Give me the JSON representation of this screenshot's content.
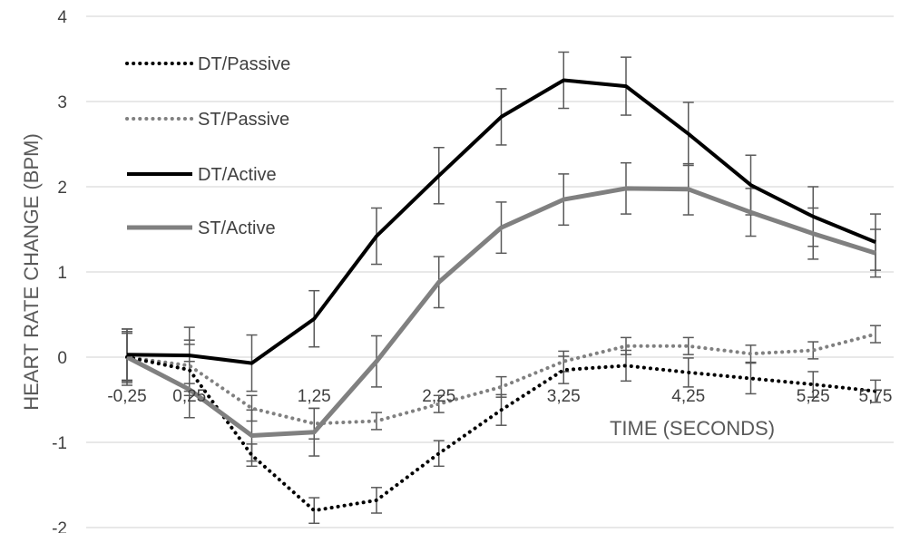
{
  "chart_data": {
    "type": "line",
    "title": "",
    "xlabel": "TIME (SECONDS)",
    "ylabel": "HEART RATE CHANGE (BPM)",
    "ylim": [
      -2,
      4
    ],
    "yticks": [
      "-2",
      "-1",
      "0",
      "1",
      "2",
      "3",
      "4"
    ],
    "x": [
      -0.25,
      0.25,
      0.75,
      1.25,
      1.75,
      2.25,
      2.75,
      3.25,
      3.75,
      4.25,
      4.75,
      5.25,
      5.75
    ],
    "xtick_labels": [
      "-0,25",
      "0,25",
      "1,25",
      "2,25",
      "3,25",
      "4,25",
      "5,25",
      "5,75"
    ],
    "xtick_values": [
      -0.25,
      0.25,
      1.25,
      2.25,
      3.25,
      4.25,
      5.25,
      5.75
    ],
    "grid": true,
    "legend_position": "top-left",
    "series": [
      {
        "name": "DT/Passive",
        "style": "dotted",
        "color": "#000000",
        "values": [
          0.0,
          -0.15,
          -1.15,
          -1.8,
          -1.68,
          -1.13,
          -0.62,
          -0.15,
          -0.1,
          -0.18,
          -0.25,
          -0.32,
          -0.4
        ],
        "error": [
          0.28,
          0.3,
          0.13,
          0.15,
          0.15,
          0.15,
          0.18,
          0.16,
          0.18,
          0.17,
          0.18,
          0.15,
          0.13
        ]
      },
      {
        "name": "ST/Passive",
        "style": "dotted",
        "color": "#808080",
        "values": [
          0.0,
          -0.1,
          -0.6,
          -0.78,
          -0.75,
          -0.55,
          -0.35,
          -0.05,
          0.13,
          0.13,
          0.04,
          0.08,
          0.27
        ],
        "error": [
          0.33,
          0.3,
          0.15,
          0.18,
          0.1,
          0.1,
          0.12,
          0.12,
          0.1,
          0.1,
          0.1,
          0.1,
          0.1
        ]
      },
      {
        "name": "DT/Active",
        "style": "solid",
        "color": "#000000",
        "values": [
          0.03,
          0.02,
          -0.07,
          0.45,
          1.42,
          2.13,
          2.82,
          3.25,
          3.18,
          2.62,
          2.02,
          1.65,
          1.35
        ],
        "error": [
          0.3,
          0.33,
          0.33,
          0.33,
          0.33,
          0.33,
          0.33,
          0.33,
          0.34,
          0.37,
          0.35,
          0.35,
          0.33
        ]
      },
      {
        "name": "ST/Active",
        "style": "solid",
        "color": "#808080",
        "values": [
          0.0,
          -0.38,
          -0.92,
          -0.88,
          -0.05,
          0.88,
          1.52,
          1.85,
          1.98,
          1.97,
          1.7,
          1.45,
          1.22
        ],
        "error": [
          0.3,
          0.33,
          0.3,
          0.28,
          0.3,
          0.3,
          0.3,
          0.3,
          0.3,
          0.3,
          0.28,
          0.3,
          0.28
        ]
      }
    ]
  }
}
